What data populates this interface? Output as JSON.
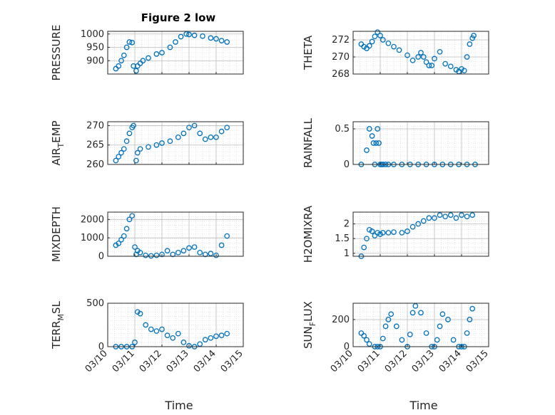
{
  "figure": {
    "title": "Figure 2 low",
    "xlabel": "Time",
    "marker_color": "#0072BD"
  },
  "chart_data": [
    {
      "type": "scatter",
      "ylabel": "PRESSURE",
      "ylabel_sub": "",
      "xlim": [
        0,
        5
      ],
      "ylim": [
        850,
        1010
      ],
      "yticks": [
        900,
        950,
        1000
      ],
      "ytick_labels": [
        "900",
        "950",
        "1000"
      ],
      "x_tick_labels": [
        "03/10",
        "03/11",
        "03/12",
        "03/13",
        "03/14",
        "03/15"
      ],
      "x": [
        0.3,
        0.4,
        0.5,
        0.6,
        0.7,
        0.8,
        0.9,
        0.95,
        1.05,
        1.1,
        1.2,
        1.3,
        1.5,
        1.8,
        2.0,
        2.3,
        2.5,
        2.7,
        2.9,
        3.0,
        3.2,
        3.5,
        3.8,
        4.0,
        4.2,
        4.4
      ],
      "y": [
        870,
        880,
        900,
        920,
        950,
        970,
        968,
        880,
        862,
        880,
        890,
        900,
        910,
        925,
        930,
        950,
        970,
        990,
        1000,
        998,
        995,
        992,
        985,
        982,
        975,
        970
      ]
    },
    {
      "type": "scatter",
      "ylabel": "THETA",
      "ylabel_sub": "",
      "xlim": [
        0,
        5
      ],
      "ylim": [
        268,
        273
      ],
      "yticks": [
        268,
        270,
        272
      ],
      "ytick_labels": [
        "268",
        "270",
        "272"
      ],
      "x_tick_labels": [
        "03/10",
        "03/11",
        "03/12",
        "03/13",
        "03/14",
        "03/15"
      ],
      "x": [
        0.3,
        0.4,
        0.5,
        0.6,
        0.7,
        0.8,
        0.9,
        1.0,
        1.1,
        1.3,
        1.5,
        1.7,
        2.0,
        2.2,
        2.4,
        2.5,
        2.6,
        2.7,
        2.8,
        2.9,
        3.0,
        3.2,
        3.4,
        3.6,
        3.8,
        3.9,
        4.0,
        4.1,
        4.2,
        4.3,
        4.4,
        4.45
      ],
      "y": [
        271.5,
        271.2,
        271.0,
        271.3,
        271.8,
        272.4,
        272.9,
        272.5,
        272.0,
        271.6,
        271.2,
        270.8,
        270.2,
        269.6,
        270.0,
        270.5,
        270.0,
        269.4,
        269.0,
        269.0,
        269.8,
        270.6,
        269.2,
        268.9,
        268.5,
        268.3,
        268.6,
        268.4,
        270.0,
        271.5,
        272.2,
        272.5
      ]
    },
    {
      "type": "scatter",
      "ylabel": "AIR",
      "ylabel_sub": "T",
      "ylabel_suffix": "EMP",
      "xlim": [
        0,
        5
      ],
      "ylim": [
        260,
        271
      ],
      "yticks": [
        260,
        265,
        270
      ],
      "ytick_labels": [
        "260",
        "265",
        "270"
      ],
      "x_tick_labels": [
        "03/10",
        "03/11",
        "03/12",
        "03/13",
        "03/14",
        "03/15"
      ],
      "x": [
        0.3,
        0.4,
        0.5,
        0.6,
        0.7,
        0.8,
        0.9,
        0.95,
        1.05,
        1.1,
        1.2,
        1.5,
        1.8,
        2.0,
        2.3,
        2.6,
        2.8,
        3.0,
        3.2,
        3.4,
        3.6,
        3.8,
        4.0,
        4.2,
        4.4
      ],
      "y": [
        261,
        262,
        263,
        264,
        266,
        268,
        269.5,
        270,
        261,
        263,
        264,
        264.5,
        265,
        265.5,
        266,
        267,
        268,
        269.5,
        270,
        268,
        266.5,
        267,
        267,
        268.5,
        269.5
      ]
    },
    {
      "type": "scatter",
      "ylabel": "RAINFALL",
      "ylabel_sub": "",
      "xlim": [
        0,
        5
      ],
      "ylim": [
        0,
        0.6
      ],
      "yticks": [
        0,
        0.5
      ],
      "ytick_labels": [
        "0",
        "0.5"
      ],
      "x_tick_labels": [
        "03/10",
        "03/11",
        "03/12",
        "03/13",
        "03/14",
        "03/15"
      ],
      "x": [
        0.3,
        0.5,
        0.6,
        0.7,
        0.75,
        0.8,
        0.85,
        0.9,
        0.95,
        1.0,
        1.05,
        1.1,
        1.2,
        1.3,
        1.5,
        1.8,
        2.1,
        2.4,
        2.7,
        3.0,
        3.3,
        3.6,
        3.9,
        4.2,
        4.5
      ],
      "y": [
        0,
        0.2,
        0.5,
        0.4,
        0.3,
        0,
        0.3,
        0.5,
        0.3,
        0,
        0,
        0,
        0,
        0,
        0,
        0,
        0,
        0,
        0,
        0,
        0,
        0,
        0,
        0,
        0
      ]
    },
    {
      "type": "scatter",
      "ylabel": "MIXDEPTH",
      "ylabel_sub": "",
      "xlim": [
        0,
        5
      ],
      "ylim": [
        0,
        2400
      ],
      "yticks": [
        0,
        1000,
        2000
      ],
      "ytick_labels": [
        "0",
        "1000",
        "2000"
      ],
      "x_tick_labels": [
        "03/10",
        "03/11",
        "03/12",
        "03/13",
        "03/14",
        "03/15"
      ],
      "x": [
        0.3,
        0.4,
        0.5,
        0.6,
        0.7,
        0.8,
        0.9,
        1.0,
        1.05,
        1.1,
        1.2,
        1.4,
        1.6,
        1.8,
        2.0,
        2.2,
        2.4,
        2.6,
        2.8,
        3.0,
        3.2,
        3.4,
        3.6,
        3.8,
        4.0,
        4.2,
        4.4
      ],
      "y": [
        600,
        700,
        900,
        1100,
        1500,
        2000,
        2200,
        500,
        100,
        300,
        200,
        50,
        20,
        50,
        100,
        300,
        100,
        200,
        300,
        450,
        500,
        200,
        100,
        150,
        50,
        600,
        1100
      ]
    },
    {
      "type": "scatter",
      "ylabel": "H2OMIXRA",
      "ylabel_sub": "",
      "xlim": [
        0,
        5
      ],
      "ylim": [
        0.9,
        2.4
      ],
      "yticks": [
        1,
        1.5,
        2
      ],
      "ytick_labels": [
        "1",
        "1.5",
        "2"
      ],
      "x_tick_labels": [
        "03/10",
        "03/11",
        "03/12",
        "03/13",
        "03/14",
        "03/15"
      ],
      "x": [
        0.3,
        0.4,
        0.5,
        0.6,
        0.7,
        0.8,
        0.9,
        1.0,
        1.1,
        1.3,
        1.5,
        1.8,
        2.0,
        2.2,
        2.4,
        2.6,
        2.8,
        3.0,
        3.2,
        3.4,
        3.6,
        3.8,
        4.0,
        4.2,
        4.4
      ],
      "y": [
        0.9,
        1.2,
        1.5,
        1.8,
        1.75,
        1.6,
        1.7,
        1.65,
        1.7,
        1.7,
        1.72,
        1.7,
        1.75,
        1.9,
        2.0,
        2.1,
        2.2,
        2.2,
        2.3,
        2.25,
        2.3,
        2.2,
        2.3,
        2.25,
        2.3
      ]
    },
    {
      "type": "scatter",
      "ylabel": "TERR",
      "ylabel_sub": "M",
      "ylabel_suffix": "SL",
      "xlim": [
        0,
        5
      ],
      "ylim": [
        0,
        500
      ],
      "yticks": [
        0,
        500
      ],
      "ytick_labels": [
        "0",
        "500"
      ],
      "x_tick_labels": [
        "03/10",
        "03/11",
        "03/12",
        "03/13",
        "03/14",
        "03/15"
      ],
      "x": [
        0.3,
        0.5,
        0.7,
        0.9,
        1.0,
        1.1,
        1.2,
        1.4,
        1.6,
        1.8,
        2.0,
        2.2,
        2.4,
        2.6,
        2.8,
        3.0,
        3.2,
        3.4,
        3.6,
        3.8,
        4.0,
        4.2,
        4.4
      ],
      "y": [
        0,
        0,
        0,
        0,
        50,
        400,
        380,
        250,
        200,
        180,
        200,
        130,
        100,
        150,
        50,
        10,
        0,
        30,
        80,
        100,
        120,
        130,
        150
      ]
    },
    {
      "type": "scatter",
      "ylabel": "SUN",
      "ylabel_sub": "F",
      "ylabel_suffix": "LUX",
      "xlim": [
        0,
        5
      ],
      "ylim": [
        0,
        320
      ],
      "yticks": [
        0,
        200
      ],
      "ytick_labels": [
        "0",
        "200"
      ],
      "x_tick_labels": [
        "03/10",
        "03/11",
        "03/12",
        "03/13",
        "03/14",
        "03/15"
      ],
      "x": [
        0.3,
        0.4,
        0.5,
        0.6,
        0.8,
        0.9,
        1.0,
        1.1,
        1.2,
        1.3,
        1.4,
        1.6,
        1.8,
        2.0,
        2.1,
        2.2,
        2.3,
        2.5,
        2.7,
        2.9,
        3.0,
        3.1,
        3.2,
        3.3,
        3.5,
        3.7,
        3.9,
        4.0,
        4.1,
        4.2,
        4.3,
        4.4
      ],
      "y": [
        100,
        80,
        50,
        20,
        0,
        0,
        0,
        60,
        150,
        200,
        240,
        150,
        50,
        0,
        90,
        250,
        300,
        250,
        100,
        0,
        0,
        50,
        150,
        240,
        200,
        50,
        0,
        0,
        0,
        100,
        200,
        280
      ]
    }
  ]
}
